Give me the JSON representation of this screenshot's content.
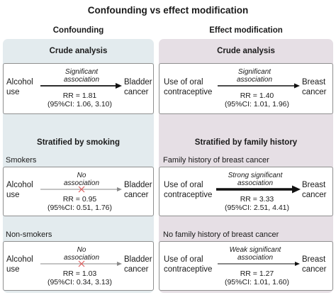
{
  "title": "Confounding vs effect modification",
  "confounding": {
    "heading": "Confounding",
    "crude_title": "Crude analysis",
    "crude": {
      "exposure": [
        "Alcohol",
        "use"
      ],
      "outcome": [
        "Bladder",
        "cancer"
      ],
      "association": [
        "Significant",
        "association"
      ],
      "rr": "RR = 1.81",
      "ci": "(95%CI: 1.06, 3.10)"
    },
    "stratified_title": "Stratified by smoking",
    "strata": [
      {
        "group": "Smokers",
        "exposure": [
          "Alcohol",
          "use"
        ],
        "outcome": [
          "Bladder",
          "cancer"
        ],
        "association": [
          "No",
          "association"
        ],
        "rr": "RR = 0.95",
        "ci": "(95%CI: 0.51, 1.76)"
      },
      {
        "group": "Non-smokers",
        "exposure": [
          "Alcohol",
          "use"
        ],
        "outcome": [
          "Bladder",
          "cancer"
        ],
        "association": [
          "No",
          "association"
        ],
        "rr": "RR = 1.03",
        "ci": "(95%CI: 0.34, 3.13)"
      }
    ]
  },
  "effect_modification": {
    "heading": "Effect modification",
    "crude_title": "Crude analysis",
    "crude": {
      "exposure": [
        "Use of oral",
        "contraceptive"
      ],
      "outcome": [
        "Breast",
        "cancer"
      ],
      "association": [
        "Significant",
        "association"
      ],
      "rr": "RR = 1.40",
      "ci": "(95%CI: 1.01, 1.96)"
    },
    "stratified_title": "Stratified by family history",
    "strata": [
      {
        "group": "Family history of breast cancer",
        "exposure": [
          "Use of oral",
          "contraceptive"
        ],
        "outcome": [
          "Breast",
          "cancer"
        ],
        "association": [
          "Strong significant",
          "association"
        ],
        "rr": "RR = 3.33",
        "ci": "(95%CI: 2.51, 4.41)"
      },
      {
        "group": "No family history of breast cancer",
        "exposure": [
          "Use of oral",
          "contraceptive"
        ],
        "outcome": [
          "Breast",
          "cancer"
        ],
        "association": [
          "Weak significant",
          "association"
        ],
        "rr": "RR = 1.27",
        "ci": "(95%CI: 1.01, 1.60)"
      }
    ]
  },
  "colors": {
    "confounding_panel": "#e3ebee",
    "effect_panel": "#e6dfe5",
    "arrow_dark": "#111111",
    "arrow_muted": "#8a8a8a",
    "null_mark": "#e06060"
  },
  "icons": {
    "arrow": "right-arrow-icon",
    "null_mark": "cross-icon"
  }
}
